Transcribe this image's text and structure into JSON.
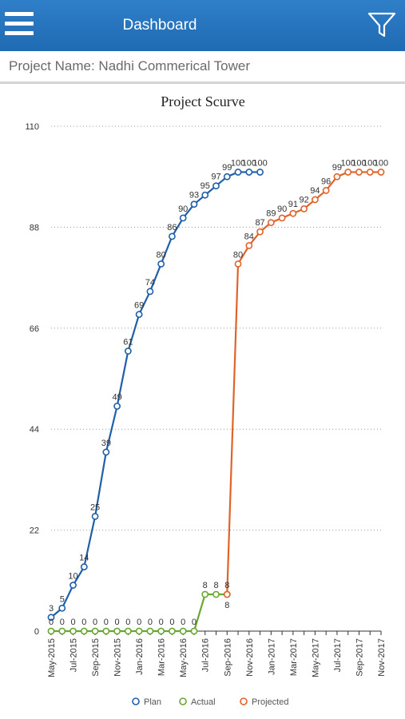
{
  "header": {
    "title": "Dashboard",
    "menu_icon": "hamburger-menu-icon",
    "filter_icon": "filter-icon"
  },
  "project": {
    "label": "Project Name: Nadhi Commerical Tower"
  },
  "colors": {
    "header": "#2474bf",
    "plan": "#1f5fa8",
    "actual": "#6aa632",
    "projected": "#e0632a"
  },
  "chart_data": {
    "type": "line",
    "title": "Project Scurve",
    "xlabel": "",
    "ylabel": "",
    "ylim": [
      0,
      110
    ],
    "yticks": [
      0,
      22,
      44,
      66,
      88,
      110
    ],
    "grid": true,
    "legend_position": "bottom",
    "x": [
      "May-2015",
      "Jun-2015",
      "Jul-2015",
      "Aug-2015",
      "Sep-2015",
      "Oct-2015",
      "Nov-2015",
      "Dec-2015",
      "Jan-2016",
      "Feb-2016",
      "Mar-2016",
      "Apr-2016",
      "May-2016",
      "Jun-2016",
      "Jul-2016",
      "Aug-2016",
      "Sep-2016",
      "Oct-2016",
      "Nov-2016",
      "Dec-2016",
      "Jan-2017",
      "Feb-2017",
      "Mar-2017",
      "Apr-2017",
      "May-2017",
      "Jun-2017",
      "Jul-2017",
      "Aug-2017",
      "Sep-2017",
      "Oct-2017",
      "Nov-2017"
    ],
    "xtick_labels": [
      "May-2015",
      "Jul-2015",
      "Sep-2015",
      "Nov-2015",
      "Jan-2016",
      "Mar-2016",
      "May-2016",
      "Jul-2016",
      "Sep-2016",
      "Nov-2016",
      "Jan-2017",
      "Mar-2017",
      "May-2017",
      "Jul-2017",
      "Sep-2017",
      "Nov-2017"
    ],
    "series": [
      {
        "name": "Plan",
        "color": "#1f5fa8",
        "x": [
          "May-2015",
          "Jun-2015",
          "Jul-2015",
          "Aug-2015",
          "Sep-2015",
          "Oct-2015",
          "Nov-2015",
          "Dec-2015",
          "Jan-2016",
          "Feb-2016",
          "Mar-2016",
          "Apr-2016",
          "May-2016",
          "Jun-2016",
          "Jul-2016",
          "Aug-2016",
          "Sep-2016",
          "Oct-2016",
          "Nov-2016",
          "Dec-2016"
        ],
        "values": [
          3,
          5,
          10,
          14,
          25,
          39,
          49,
          61,
          69,
          74,
          80,
          86,
          90,
          93,
          95,
          97,
          99,
          100,
          100,
          100
        ]
      },
      {
        "name": "Actual",
        "color": "#6aa632",
        "x": [
          "May-2015",
          "Jun-2015",
          "Jul-2015",
          "Aug-2015",
          "Sep-2015",
          "Oct-2015",
          "Nov-2015",
          "Dec-2015",
          "Jan-2016",
          "Feb-2016",
          "Mar-2016",
          "Apr-2016",
          "May-2016",
          "Jun-2016",
          "Jul-2016",
          "Aug-2016",
          "Sep-2016"
        ],
        "values": [
          0,
          0,
          0,
          0,
          0,
          0,
          0,
          0,
          0,
          0,
          0,
          0,
          0,
          0,
          8,
          8,
          8
        ]
      },
      {
        "name": "Projected",
        "color": "#e0632a",
        "x": [
          "Sep-2016",
          "Oct-2016",
          "Nov-2016",
          "Dec-2016",
          "Jan-2017",
          "Feb-2017",
          "Mar-2017",
          "Apr-2017",
          "May-2017",
          "Jun-2017",
          "Jul-2017",
          "Aug-2017",
          "Sep-2017",
          "Oct-2017",
          "Nov-2017"
        ],
        "values": [
          8,
          80,
          84,
          87,
          89,
          90,
          91,
          92,
          94,
          96,
          99,
          100,
          100,
          100,
          100
        ]
      }
    ]
  }
}
